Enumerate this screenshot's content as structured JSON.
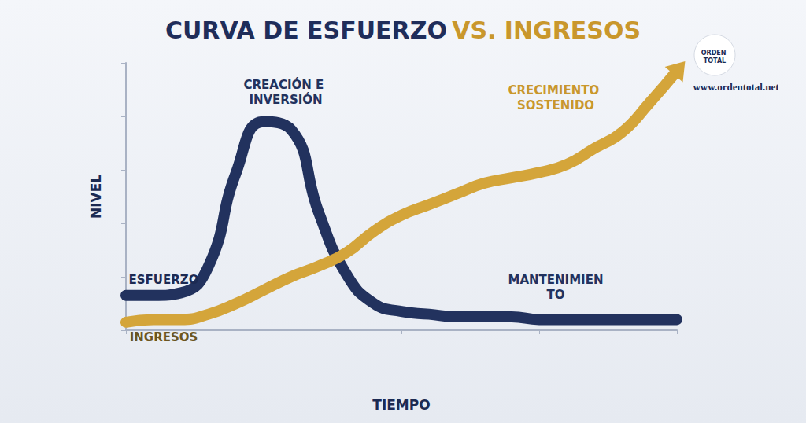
{
  "chart_data": {
    "type": "line",
    "title": "CURVA DE ESFUERZO VS. INGRESOS",
    "x_label": "TIEMPO",
    "y_label": "NIVEL",
    "x": [
      0,
      1,
      2,
      3,
      4,
      5,
      6,
      7,
      8,
      9,
      10,
      11,
      12,
      13,
      14,
      15,
      16,
      17,
      18,
      19,
      20
    ],
    "series": [
      {
        "name": "ESFUERZO",
        "color": "#22325e",
        "values": [
          13,
          13,
          14,
          24,
          59,
          78,
          75,
          44,
          21,
          10,
          7,
          6,
          5,
          5,
          5,
          4,
          4,
          4,
          4,
          4,
          4
        ]
      },
      {
        "name": "INGRESOS",
        "color": "#d4a53a",
        "values": [
          3,
          4,
          4,
          6,
          10,
          15,
          20,
          24,
          29,
          37,
          43,
          47,
          51,
          55,
          57,
          59,
          62,
          68,
          74,
          85,
          97
        ]
      }
    ],
    "annotations": [
      {
        "text": "CREACIÓN E INVERSIÓN",
        "x": 5.8,
        "y": 89,
        "color": "#22325e"
      },
      {
        "text": "CRECIMIENTO SOSTENIDO",
        "x": 15.6,
        "y": 87,
        "color": "#c9972c"
      },
      {
        "text": "MANTENIMIENTO",
        "x": 15.6,
        "y": 16,
        "color": "#22325e"
      }
    ],
    "logo": {
      "text": "ORDEN TOTAL",
      "url": "www.ordentotal.net"
    },
    "xlim": [
      0,
      20
    ],
    "ylim": [
      0,
      100
    ],
    "xticks": [
      0,
      5,
      10,
      15,
      20
    ],
    "yticks": [
      0,
      20,
      40,
      60,
      80,
      100
    ],
    "grid": false,
    "tick_labels": false
  }
}
